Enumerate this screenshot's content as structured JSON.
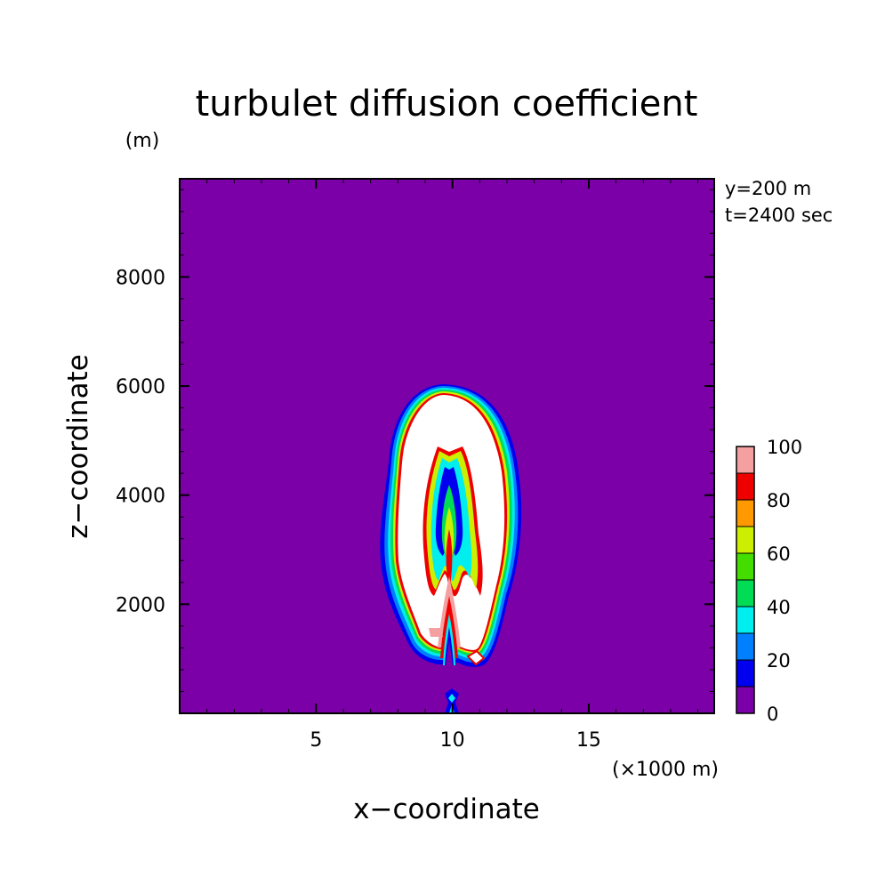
{
  "chart_data": {
    "type": "heatmap",
    "title": "turbulet diffusion coefficient",
    "xlabel": "x−coordinate",
    "ylabel": "z−coordinate",
    "x_unit": "(×1000 m)",
    "y_unit": "(m)",
    "annotations": [
      "y=200 m",
      "t=2400 sec"
    ],
    "xlim": [
      0,
      19.6
    ],
    "ylim": [
      0,
      9800
    ],
    "x_ticks": [
      5,
      10,
      15
    ],
    "y_ticks": [
      2000,
      4000,
      6000,
      8000
    ],
    "grid": false,
    "colorbar": {
      "levels": [
        0,
        10,
        20,
        30,
        40,
        50,
        60,
        70,
        80,
        90,
        100
      ],
      "tick_labels": [
        "0",
        "20",
        "40",
        "60",
        "80",
        "100"
      ],
      "colors": [
        "#7b00a8",
        "#0000ee",
        "#0080ff",
        "#00eeee",
        "#00dd55",
        "#44dd00",
        "#ccee00",
        "#ff9900",
        "#ee0000",
        "#f5a0a0"
      ],
      "above_max_color": "#ffffff"
    }
  }
}
